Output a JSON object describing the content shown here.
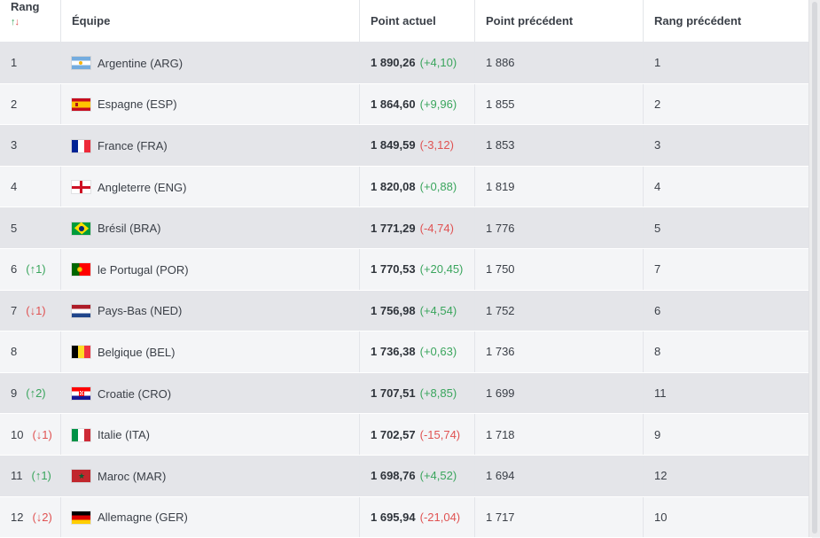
{
  "table": {
    "headers": {
      "rank": "Rang",
      "rank_sort_up": "↑",
      "rank_sort_down": "↓",
      "team": "Équipe",
      "points": "Point actuel",
      "prev_points": "Point précédent",
      "prev_rank": "Rang précédent"
    },
    "rows": [
      {
        "rank": "1",
        "change": "",
        "change_dir": "",
        "flag": "arg",
        "team": "Argentine (ARG)",
        "points": "1 890,26",
        "delta": "(+4,10)",
        "delta_dir": "up",
        "prev_points": "1 886",
        "prev_rank": "1"
      },
      {
        "rank": "2",
        "change": "",
        "change_dir": "",
        "flag": "esp",
        "team": "Espagne (ESP)",
        "points": "1 864,60",
        "delta": "(+9,96)",
        "delta_dir": "up",
        "prev_points": "1 855",
        "prev_rank": "2"
      },
      {
        "rank": "3",
        "change": "",
        "change_dir": "",
        "flag": "fra",
        "team": "France (FRA)",
        "points": "1 849,59",
        "delta": "(-3,12)",
        "delta_dir": "down",
        "prev_points": "1 853",
        "prev_rank": "3"
      },
      {
        "rank": "4",
        "change": "",
        "change_dir": "",
        "flag": "eng",
        "team": "Angleterre (ENG)",
        "points": "1 820,08",
        "delta": "(+0,88)",
        "delta_dir": "up",
        "prev_points": "1 819",
        "prev_rank": "4"
      },
      {
        "rank": "5",
        "change": "",
        "change_dir": "",
        "flag": "bra",
        "team": "Brésil (BRA)",
        "points": "1 771,29",
        "delta": "(-4,74)",
        "delta_dir": "down",
        "prev_points": "1 776",
        "prev_rank": "5"
      },
      {
        "rank": "6",
        "change": "(↑1)",
        "change_dir": "up",
        "flag": "por",
        "team": "le Portugal (POR)",
        "points": "1 770,53",
        "delta": "(+20,45)",
        "delta_dir": "up",
        "prev_points": "1 750",
        "prev_rank": "7"
      },
      {
        "rank": "7",
        "change": "(↓1)",
        "change_dir": "down",
        "flag": "ned",
        "team": "Pays-Bas (NED)",
        "points": "1 756,98",
        "delta": "(+4,54)",
        "delta_dir": "up",
        "prev_points": "1 752",
        "prev_rank": "6"
      },
      {
        "rank": "8",
        "change": "",
        "change_dir": "",
        "flag": "bel",
        "team": "Belgique (BEL)",
        "points": "1 736,38",
        "delta": "(+0,63)",
        "delta_dir": "up",
        "prev_points": "1 736",
        "prev_rank": "8"
      },
      {
        "rank": "9",
        "change": "(↑2)",
        "change_dir": "up",
        "flag": "cro",
        "team": "Croatie (CRO)",
        "points": "1 707,51",
        "delta": "(+8,85)",
        "delta_dir": "up",
        "prev_points": "1 699",
        "prev_rank": "11"
      },
      {
        "rank": "10",
        "change": "(↓1)",
        "change_dir": "down",
        "flag": "ita",
        "team": "Italie (ITA)",
        "points": "1 702,57",
        "delta": "(-15,74)",
        "delta_dir": "down",
        "prev_points": "1 718",
        "prev_rank": "9"
      },
      {
        "rank": "11",
        "change": "(↑1)",
        "change_dir": "up",
        "flag": "mar",
        "team": "Maroc (MAR)",
        "points": "1 698,76",
        "delta": "(+4,52)",
        "delta_dir": "up",
        "prev_points": "1 694",
        "prev_rank": "12"
      },
      {
        "rank": "12",
        "change": "(↓2)",
        "change_dir": "down",
        "flag": "ger",
        "team": "Allemagne (GER)",
        "points": "1 695,94",
        "delta": "(-21,04)",
        "delta_dir": "down",
        "prev_points": "1 717",
        "prev_rank": "10"
      }
    ]
  },
  "colors": {
    "up": "#3aa55d",
    "down": "#e05252",
    "row_odd": "#e4e5e9",
    "row_even": "#f4f5f7"
  }
}
